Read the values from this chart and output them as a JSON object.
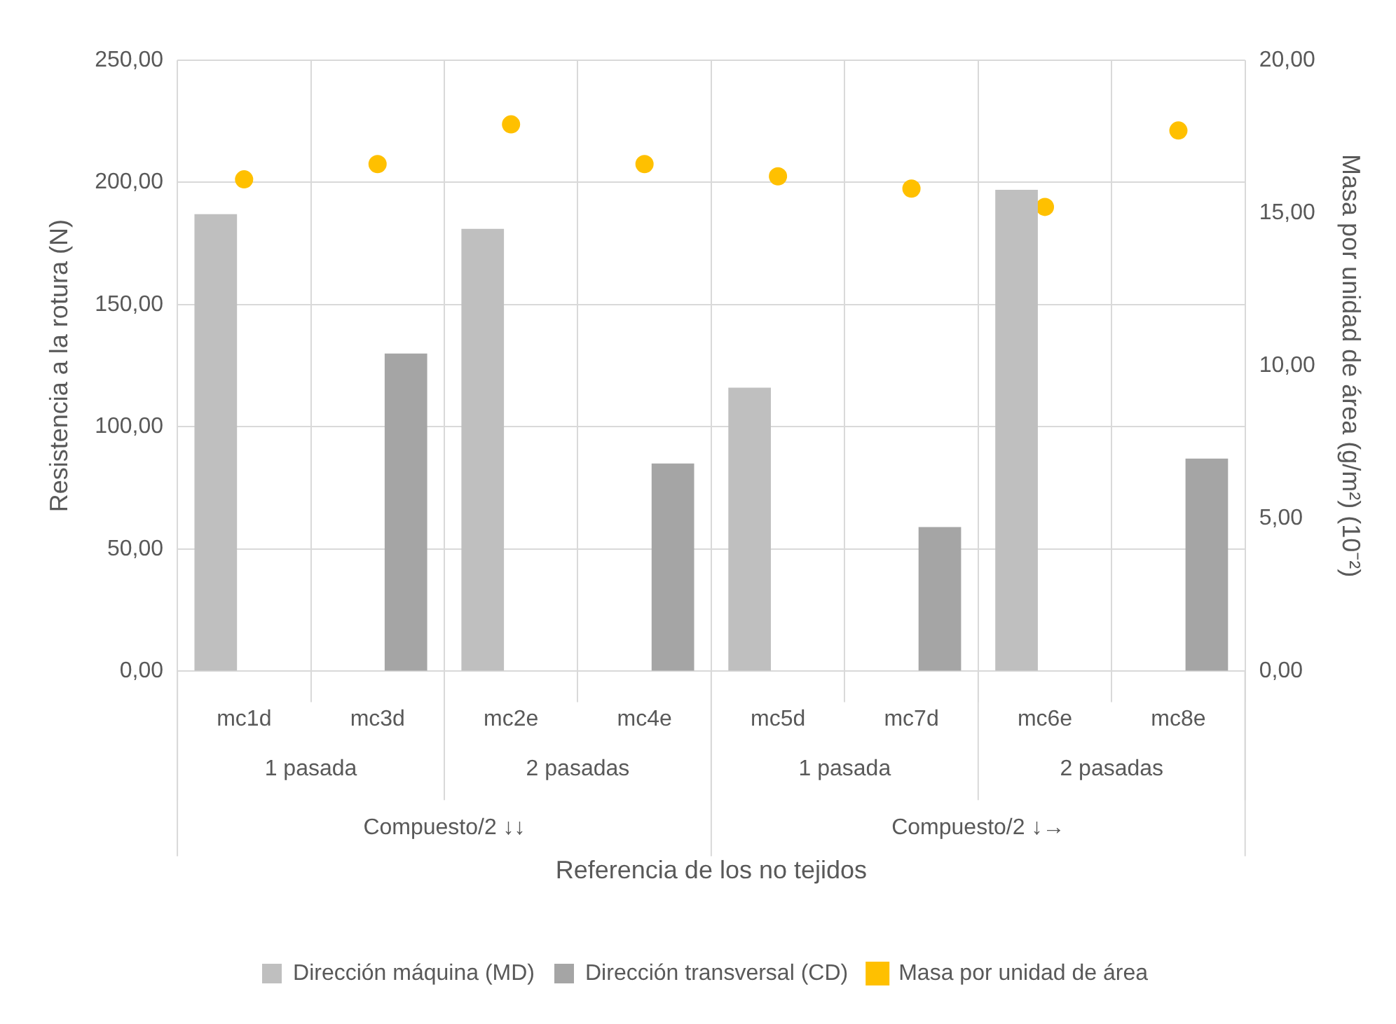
{
  "chart_data": {
    "type": "bar",
    "xlabel": "Referencia de los no tejidos",
    "ylabel": "Resistencia a la rotura (N)",
    "y2label": "Masa por unidad de área (g/m²) (10⁻²)",
    "categories": [
      "mc1d",
      "mc3d",
      "mc2e",
      "mc4e",
      "mc5d",
      "mc7d",
      "mc6e",
      "mc8e"
    ],
    "series": [
      {
        "name": "Dirección máquina (MD)",
        "color": "#bfbfbf",
        "values": [
          187,
          null,
          181,
          null,
          116,
          null,
          197,
          null
        ]
      },
      {
        "name": "Dirección transversal (CD)",
        "color": "#a5a5a5",
        "values": [
          null,
          130,
          null,
          85,
          null,
          59,
          null,
          87
        ]
      },
      {
        "name": "Masa por unidad de área",
        "type": "scatter",
        "axis": "y2",
        "color": "#ffc000",
        "values": [
          16.1,
          16.6,
          17.9,
          16.6,
          16.2,
          15.8,
          15.2,
          17.7
        ]
      }
    ],
    "ylim": [
      0,
      250
    ],
    "yticks": [
      {
        "value": 0,
        "label": "0,00"
      },
      {
        "value": 50,
        "label": "50,00"
      },
      {
        "value": 100,
        "label": "100,00"
      },
      {
        "value": 150,
        "label": "150,00"
      },
      {
        "value": 200,
        "label": "200,00"
      },
      {
        "value": 250,
        "label": "250,00"
      }
    ],
    "y2lim": [
      0,
      20
    ],
    "y2ticks": [
      {
        "value": 0,
        "label": "0,00"
      },
      {
        "value": 5,
        "label": "5,00"
      },
      {
        "value": 10,
        "label": "10,00"
      },
      {
        "value": 15,
        "label": "15,00"
      },
      {
        "value": 20,
        "label": "20,00"
      }
    ],
    "annotations": [
      "1 pasada",
      "2 pasadas",
      "1 pasada",
      "2 pasadas",
      "Compuesto/2 ↓↓",
      "Compuesto/2 ↓→"
    ],
    "grid": true,
    "legend": "bottom",
    "marker": "circle"
  }
}
